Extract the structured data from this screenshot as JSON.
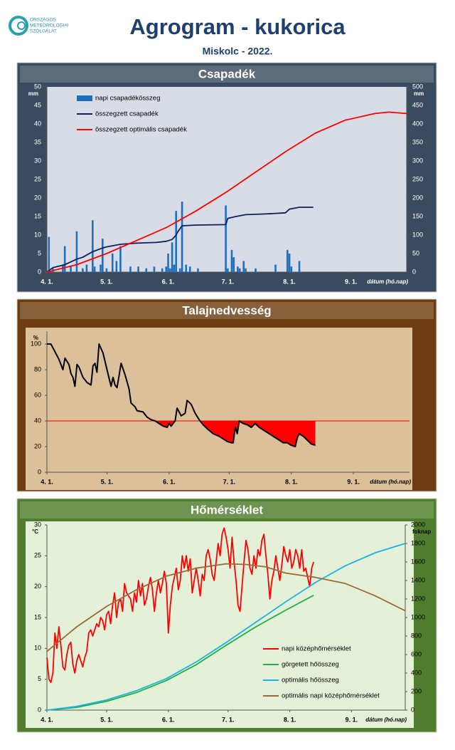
{
  "header": {
    "logo_lines": [
      "ORSZÁGOS",
      "METEOROLÓGIAI",
      "SZOLGÁLAT"
    ],
    "title": "Agrogram - kukorica",
    "subtitle": "Miskolc - 2022."
  },
  "chart_data": [
    {
      "type": "combo",
      "title": "Csapadék",
      "y_unit": "mm",
      "y2_unit": "mm",
      "x_label": "dátum (hó.nap)",
      "legend": "upper left",
      "xlim": [
        0,
        181
      ],
      "xticks": [
        {
          "value": 0,
          "label": "4. 1."
        },
        {
          "value": 30,
          "label": "5. 1."
        },
        {
          "value": 61,
          "label": "6. 1."
        },
        {
          "value": 91,
          "label": "7. 1."
        },
        {
          "value": 122,
          "label": "8. 1."
        },
        {
          "value": 153,
          "label": "9. 1."
        }
      ],
      "ylim": [
        0,
        50
      ],
      "yticks": [
        0,
        5,
        10,
        15,
        20,
        25,
        30,
        35,
        40,
        45,
        50
      ],
      "y2lim": [
        0,
        500
      ],
      "y2ticks": [
        0,
        50,
        100,
        150,
        200,
        250,
        300,
        350,
        400,
        450,
        500
      ],
      "series": [
        {
          "name": "napi csapadékösszeg",
          "type": "bar",
          "color": "#1f6fbf",
          "x": [
            1,
            3,
            8,
            9,
            12,
            15,
            18,
            20,
            23,
            24,
            27,
            28,
            30,
            33,
            35,
            37,
            42,
            46,
            50,
            54,
            58,
            60,
            61,
            62,
            63,
            64,
            65,
            67,
            68,
            70,
            72,
            76,
            90,
            91,
            93,
            94,
            96,
            97,
            99,
            100,
            105,
            115,
            121,
            122,
            123,
            127
          ],
          "values": [
            9.5,
            1,
            2,
            7,
            1.5,
            11,
            1,
            2,
            14,
            1.5,
            2,
            9,
            1,
            5,
            3,
            7,
            1.5,
            1.5,
            1,
            1.5,
            1,
            1.5,
            5,
            1,
            8,
            2,
            16.5,
            1,
            19,
            2,
            1.5,
            1,
            18,
            1,
            6,
            4,
            1.5,
            1,
            3,
            1,
            1,
            2,
            6,
            5,
            1.5,
            3
          ]
        },
        {
          "name": "összegzett csapadék",
          "type": "line",
          "axis": "y2",
          "color": "#0d1f5c",
          "x": [
            0,
            3,
            9,
            15,
            18,
            23,
            28,
            30,
            37,
            45,
            55,
            60,
            63,
            65,
            66,
            68,
            75,
            90,
            91,
            95,
            100,
            110,
            120,
            122,
            127,
            134
          ],
          "values": [
            0,
            12,
            20,
            35,
            40,
            55,
            65,
            68,
            75,
            78,
            80,
            83,
            88,
            100,
            110,
            125,
            127,
            128,
            145,
            150,
            155,
            157,
            160,
            170,
            175,
            175
          ]
        },
        {
          "name": "összegzett optimális  csapadék",
          "type": "line",
          "axis": "y2",
          "color": "#ff0000",
          "x": [
            0,
            15,
            30,
            45,
            60,
            75,
            90,
            105,
            120,
            135,
            150,
            165,
            172,
            181
          ],
          "values": [
            0,
            20,
            50,
            85,
            120,
            165,
            215,
            270,
            325,
            375,
            410,
            428,
            432,
            428
          ]
        }
      ]
    },
    {
      "type": "line",
      "title": "Talajnedvesség",
      "y_unit": "%",
      "x_label": "dátum (hó.nap)",
      "threshold": 40,
      "xlim": [
        0,
        181
      ],
      "xticks": [
        {
          "value": 0,
          "label": "4. 1."
        },
        {
          "value": 30,
          "label": "5. 1."
        },
        {
          "value": 61,
          "label": "6. 1."
        },
        {
          "value": 91,
          "label": "7. 1."
        },
        {
          "value": 122,
          "label": "8. 1."
        },
        {
          "value": 153,
          "label": "9. 1."
        }
      ],
      "ylim": [
        0,
        110
      ],
      "yticks": [
        0,
        20,
        40,
        60,
        80,
        100
      ],
      "series": [
        {
          "type": "line",
          "color": "#000000",
          "x": [
            0,
            2,
            4,
            6,
            7,
            8,
            9,
            11,
            12,
            13,
            14,
            15,
            16,
            18,
            20,
            22,
            23,
            24,
            25,
            26,
            28,
            30,
            32,
            33,
            34,
            35,
            36,
            37,
            39,
            41,
            42,
            44,
            45,
            48,
            50,
            52,
            54,
            56,
            58,
            60,
            61,
            62,
            64,
            65,
            66,
            67,
            69,
            70,
            72,
            74,
            76,
            78,
            80,
            83,
            86,
            88,
            90,
            92,
            93,
            94,
            95,
            96,
            98,
            100,
            102,
            104,
            106,
            108,
            110,
            112,
            114,
            116,
            118,
            120,
            122,
            124,
            125,
            126,
            128,
            130,
            132,
            134
          ],
          "values": [
            100,
            100,
            94,
            88,
            84,
            80,
            89,
            84,
            77,
            74,
            67,
            84,
            82,
            74,
            70,
            68,
            83,
            85,
            78,
            100,
            93,
            80,
            67,
            74,
            68,
            66,
            75,
            85,
            76,
            65,
            54,
            51,
            48,
            47,
            43,
            41,
            40,
            38,
            36,
            35,
            38,
            36,
            40,
            50,
            47,
            44,
            46,
            56,
            53,
            46,
            41,
            37,
            34,
            30,
            28,
            26,
            24,
            23,
            23,
            35,
            30,
            40,
            38,
            37,
            35,
            38,
            35,
            33,
            31,
            29,
            27,
            25,
            23,
            23,
            21,
            20,
            27,
            30,
            28,
            25,
            22,
            21
          ]
        }
      ]
    },
    {
      "type": "line",
      "title": "Hőmérséklet",
      "y_unit": "°C",
      "y2_unit": "foknap",
      "x_label": "dátum (hó.nap)",
      "legend": "lower right",
      "xlim": [
        0,
        180
      ],
      "xticks": [
        {
          "value": 0,
          "label": "4. 1."
        },
        {
          "value": 30,
          "label": "5. 1."
        },
        {
          "value": 61,
          "label": "6. 1."
        },
        {
          "value": 91,
          "label": "7. 1."
        },
        {
          "value": 122,
          "label": "8. 1."
        },
        {
          "value": 153,
          "label": "9. 1."
        }
      ],
      "ylim": [
        0,
        30
      ],
      "yticks": [
        0,
        5,
        10,
        15,
        20,
        25,
        30
      ],
      "y2lim": [
        0,
        2000
      ],
      "y2ticks": [
        0,
        200,
        400,
        600,
        800,
        1000,
        1200,
        1400,
        1600,
        1800,
        2000
      ],
      "series": [
        {
          "name": "napi középhőmérséklet",
          "type": "line",
          "color": "#ff0000",
          "x": [
            0,
            1,
            2,
            3,
            4,
            5,
            6,
            7,
            8,
            9,
            10,
            11,
            12,
            13,
            14,
            15,
            16,
            17,
            18,
            19,
            20,
            21,
            22,
            23,
            24,
            25,
            26,
            27,
            28,
            29,
            30,
            31,
            32,
            33,
            34,
            35,
            36,
            37,
            38,
            39,
            40,
            41,
            42,
            43,
            44,
            45,
            46,
            47,
            48,
            49,
            50,
            51,
            52,
            53,
            54,
            55,
            56,
            57,
            58,
            59,
            60,
            61,
            62,
            63,
            64,
            65,
            66,
            67,
            68,
            69,
            70,
            71,
            72,
            73,
            74,
            75,
            76,
            77,
            78,
            79,
            80,
            81,
            82,
            83,
            84,
            85,
            86,
            87,
            88,
            89,
            90,
            91,
            92,
            93,
            94,
            95,
            96,
            97,
            98,
            99,
            100,
            101,
            102,
            103,
            104,
            105,
            106,
            107,
            108,
            109,
            110,
            111,
            112,
            113,
            114,
            115,
            116,
            117,
            118,
            119,
            120,
            121,
            122,
            123,
            124,
            125,
            126,
            127,
            128,
            129,
            130,
            131,
            132,
            133,
            134
          ],
          "values": [
            8.5,
            5,
            4.5,
            6,
            12.5,
            10,
            13.5,
            10.5,
            7,
            6.5,
            9,
            10.5,
            11,
            7.5,
            6,
            8,
            9,
            8,
            7,
            8.5,
            9.5,
            12.5,
            13,
            12,
            13,
            14,
            13.5,
            15,
            14.5,
            13,
            15.5,
            16,
            14,
            17,
            19,
            15,
            17.5,
            18,
            16,
            20.5,
            19,
            18.5,
            18,
            16,
            19,
            17.5,
            21,
            18.5,
            20.5,
            17,
            18,
            20,
            21.5,
            19.5,
            16,
            19,
            21,
            19,
            20.5,
            22.5,
            20.5,
            12.5,
            17,
            20,
            21.5,
            23,
            19.5,
            21,
            25,
            23,
            25,
            22.5,
            24.5,
            19,
            21,
            23,
            21,
            18.5,
            22,
            21,
            25,
            26,
            24.5,
            22,
            21,
            24,
            27,
            25,
            28.5,
            29.5,
            28,
            26,
            23,
            28,
            24,
            21,
            17,
            16,
            20,
            24,
            27.5,
            26,
            23,
            22,
            25,
            23,
            26,
            25,
            27.5,
            28.5,
            25,
            22,
            18,
            21,
            22.5,
            25,
            23,
            21,
            23.5,
            26.5,
            25,
            24,
            26,
            23,
            24,
            26,
            25,
            23,
            26,
            22.5,
            23,
            21.5,
            20,
            23,
            24
          ]
        },
        {
          "name": "görgetett hőösszeg",
          "type": "line",
          "axis": "y2",
          "color": "#1eb040",
          "x": [
            0,
            15,
            30,
            45,
            60,
            75,
            90,
            105,
            120,
            134
          ],
          "values": [
            0,
            30,
            95,
            190,
            320,
            490,
            700,
            900,
            1080,
            1240
          ]
        },
        {
          "name": "optimális hőösszeg",
          "type": "line",
          "axis": "y2",
          "color": "#19b4e6",
          "x": [
            0,
            15,
            30,
            45,
            60,
            75,
            90,
            105,
            120,
            135,
            150,
            165,
            180
          ],
          "values": [
            0,
            40,
            110,
            210,
            340,
            520,
            730,
            950,
            1170,
            1380,
            1560,
            1700,
            1800
          ]
        },
        {
          "name": "optimális napi középhőmérséklet",
          "type": "line",
          "color": "#9a6a3a",
          "x": [
            0,
            15,
            30,
            45,
            60,
            75,
            90,
            100,
            110,
            120,
            135,
            150,
            165,
            180
          ],
          "values": [
            9.5,
            13.5,
            16.8,
            19.5,
            21.7,
            23,
            23.7,
            23.6,
            23.2,
            22.2,
            21.5,
            20.5,
            18.5,
            16.1
          ]
        }
      ]
    }
  ]
}
